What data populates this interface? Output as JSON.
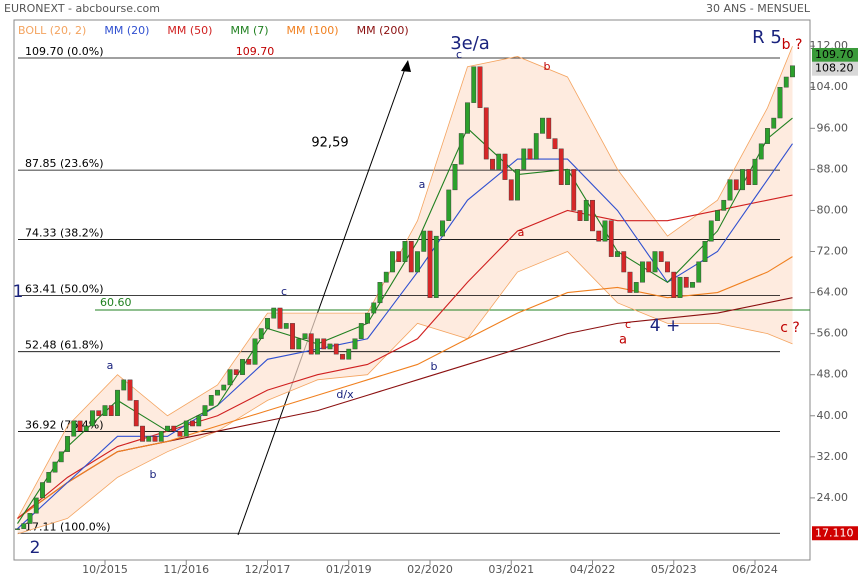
{
  "header": {
    "source": "EURONEXT - abcbourse.com",
    "period": "30 ANS - MENSUEL"
  },
  "chart_data": {
    "type": "candlestick",
    "legend": [
      {
        "name": "BOLL (20, 2)",
        "color": "#f4a460"
      },
      {
        "name": "MM (20)",
        "color": "#3050d0"
      },
      {
        "name": "MM (50)",
        "color": "#d02020"
      },
      {
        "name": "MM (7)",
        "color": "#208020"
      },
      {
        "name": "MM (100)",
        "color": "#f08020"
      },
      {
        "name": "MM (200)",
        "color": "#8b1010"
      }
    ],
    "categories": [
      null,
      null,
      null,
      null,
      null,
      null,
      null,
      null,
      null,
      null,
      null,
      null,
      null,
      null,
      "10/2015",
      null,
      null,
      null,
      null,
      null,
      null,
      null,
      null,
      null,
      null,
      null,
      null,
      "11/2016",
      null,
      null,
      null,
      null,
      null,
      null,
      null,
      null,
      null,
      null,
      null,
      null,
      "12/2017",
      null,
      null,
      null,
      null,
      null,
      null,
      null,
      null,
      null,
      null,
      null,
      null,
      "01/2019",
      null,
      null,
      null,
      null,
      null,
      null,
      null,
      null,
      null,
      null,
      null,
      null,
      "02/2020",
      null,
      null,
      null,
      null,
      null,
      null,
      null,
      null,
      null,
      null,
      null,
      null,
      "03/2021",
      null,
      null,
      null,
      null,
      null,
      null,
      null,
      null,
      null,
      null,
      null,
      null,
      "04/2022",
      null,
      null,
      null,
      null,
      null,
      null,
      null,
      null,
      null,
      null,
      null,
      null,
      "05/2023",
      null,
      null,
      null,
      null,
      null,
      null,
      null,
      null,
      null,
      null,
      null,
      null,
      "06/2024",
      null,
      null,
      null,
      null,
      null,
      null
    ],
    "closes": [
      18,
      19,
      21,
      24,
      27,
      29,
      31,
      33,
      36,
      39,
      37,
      38,
      41,
      40,
      42,
      40,
      45,
      47,
      43,
      38,
      35,
      36,
      35,
      37,
      38,
      37,
      36,
      39,
      38,
      40,
      42,
      44,
      45,
      46,
      49,
      48,
      51,
      50,
      55,
      57,
      59,
      61,
      57,
      58,
      53,
      55,
      56,
      52,
      55,
      53,
      54,
      52,
      51,
      53,
      55,
      58,
      60,
      62,
      66,
      68,
      72,
      70,
      74,
      68,
      72,
      76,
      63,
      75,
      78,
      84,
      89,
      95,
      101,
      108,
      100,
      90,
      88,
      91,
      86,
      82,
      88,
      92,
      90,
      95,
      98,
      94,
      92,
      85,
      88,
      80,
      78,
      82,
      76,
      74,
      78,
      71,
      72,
      68,
      64,
      66,
      70,
      68,
      72,
      70,
      68,
      63,
      67,
      65,
      66,
      70,
      74,
      78,
      80,
      82,
      86,
      84,
      88,
      85,
      90,
      93,
      96,
      98,
      104,
      106,
      108.2
    ],
    "up_color": "#2ca02c",
    "down_color": "#d62728",
    "x": [
      0,
      8,
      16,
      24,
      32,
      40,
      48,
      56,
      64,
      72,
      80,
      88,
      96,
      104,
      112,
      120,
      124
    ],
    "indicators": [
      {
        "name": "BOLL upper",
        "color": "#f4a460",
        "values": [
          20,
          38,
          48,
          40,
          46,
          60,
          60,
          60,
          78,
          108,
          110,
          106,
          88,
          75,
          82,
          100,
          112
        ]
      },
      {
        "name": "BOLL lower",
        "color": "#f4a460",
        "values": [
          17,
          20,
          28,
          33,
          37,
          43,
          47,
          48,
          58,
          55,
          68,
          72,
          62,
          58,
          58,
          56,
          54
        ]
      },
      {
        "name": "MM (200)",
        "color": "#8b1010",
        "values": [
          20,
          27,
          33,
          35,
          37,
          39,
          41,
          44,
          47,
          50,
          53,
          56,
          58,
          59,
          60,
          62,
          63
        ]
      },
      {
        "name": "MM (100)",
        "color": "#f08020",
        "values": [
          20,
          27,
          33,
          35,
          38,
          41,
          44,
          47,
          50,
          55,
          60,
          64,
          65,
          63,
          64,
          68,
          71
        ]
      },
      {
        "name": "MM (50)",
        "color": "#d02020",
        "values": [
          20,
          28,
          34,
          37,
          40,
          45,
          48,
          50,
          55,
          66,
          76,
          80,
          78,
          78,
          80,
          82,
          83
        ]
      },
      {
        "name": "MM (20)",
        "color": "#3050d0",
        "values": [
          18,
          27,
          36,
          36,
          42,
          51,
          53,
          55,
          68,
          82,
          90,
          90,
          80,
          66,
          72,
          86,
          93
        ]
      },
      {
        "name": "MM (7)",
        "color": "#208020",
        "values": [
          19,
          34,
          43,
          37,
          42,
          57,
          54,
          58,
          74,
          96,
          87,
          88,
          72,
          66,
          76,
          94,
          98
        ]
      }
    ],
    "ylim": [
      11.9,
      117.1
    ],
    "yticks": [
      {
        "value": 24,
        "label": "24.00"
      },
      {
        "value": 32,
        "label": "32.00"
      },
      {
        "value": 40,
        "label": "40.00"
      },
      {
        "value": 48,
        "label": "48.00"
      },
      {
        "value": 56,
        "label": "56.00"
      },
      {
        "value": 64,
        "label": "64.00"
      },
      {
        "value": 72,
        "label": "72.00"
      },
      {
        "value": 80,
        "label": "80.00"
      },
      {
        "value": 88,
        "label": "88.00"
      },
      {
        "value": 96,
        "label": "96.00"
      },
      {
        "value": 104,
        "label": "104.00"
      },
      {
        "value": 112,
        "label": "112.00"
      }
    ],
    "fib_levels": [
      {
        "value": 109.7,
        "label": "109.70  (0.0%)"
      },
      {
        "value": 87.85,
        "label": "87.85  (23.6%)"
      },
      {
        "value": 74.33,
        "label": "74.33  (38.2%)"
      },
      {
        "value": 63.41,
        "label": "63.41  (50.0%)"
      },
      {
        "value": 52.48,
        "label": "52.48  (61.8%)"
      },
      {
        "value": 36.92,
        "label": "36.92  (76.4%)"
      },
      {
        "value": 17.11,
        "label": "17.11  (100.0%)"
      }
    ],
    "top_mark": {
      "value": 109.7,
      "label": "109.70"
    },
    "support": {
      "value": 60.6,
      "label": "60.60"
    },
    "price_tags": [
      {
        "value": 109.7,
        "label": "109.70"
      },
      {
        "value": 108.2,
        "label": "108.20"
      },
      {
        "value": 17.11,
        "label": "17.110"
      }
    ],
    "annotations": [
      "3e/a",
      "R 5",
      "b ?",
      "c",
      "b",
      "a",
      "c",
      "a",
      "4 +",
      "c ?",
      "1",
      "2",
      "a",
      "b",
      "d/x",
      "b",
      "a",
      "c",
      "92,59"
    ]
  }
}
